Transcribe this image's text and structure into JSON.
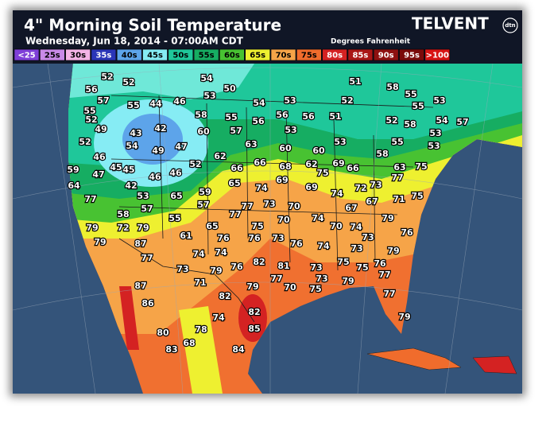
{
  "header": {
    "title": "4\" Morning Soil Temperature",
    "subtitle": "Wednesday, Jun 18, 2014 - 07:00AM CDT",
    "units": "Degrees Fahrenheit",
    "brand": "TELVENT",
    "brand_sub": "dtn"
  },
  "legend": [
    {
      "label": "<25",
      "color": "#7f3fd8",
      "text_color": "#ffffff"
    },
    {
      "label": "25s",
      "color": "#c98ae8",
      "text_color": "#000000"
    },
    {
      "label": "30s",
      "color": "#f4b4e6",
      "text_color": "#000000"
    },
    {
      "label": "35s",
      "color": "#2a36b8",
      "text_color": "#ffffff"
    },
    {
      "label": "40s",
      "color": "#5da4ea",
      "text_color": "#000000"
    },
    {
      "label": "45s",
      "color": "#86ecf4",
      "text_color": "#000000"
    },
    {
      "label": "50s",
      "color": "#1fc79a",
      "text_color": "#000000"
    },
    {
      "label": "55s",
      "color": "#16ad62",
      "text_color": "#000000"
    },
    {
      "label": "60s",
      "color": "#48c232",
      "text_color": "#000000"
    },
    {
      "label": "65s",
      "color": "#eef030",
      "text_color": "#000000"
    },
    {
      "label": "70s",
      "color": "#f6a448",
      "text_color": "#000000"
    },
    {
      "label": "75s",
      "color": "#f06c2c",
      "text_color": "#000000"
    },
    {
      "label": "80s",
      "color": "#d42222",
      "text_color": "#ffffff"
    },
    {
      "label": "85s",
      "color": "#aa1616",
      "text_color": "#ffffff"
    },
    {
      "label": "90s",
      "color": "#8e1010",
      "text_color": "#ffffff"
    },
    {
      "label": "95s",
      "color": "#7a0a0a",
      "text_color": "#ffffff"
    },
    {
      "label": ">100",
      "color": "#d81414",
      "text_color": "#ffffff"
    }
  ],
  "stations": [
    52,
    52,
    54,
    50,
    53,
    51,
    58,
    55,
    56,
    57,
    55,
    44,
    46,
    54,
    53,
    52,
    53,
    55,
    55,
    52,
    49,
    58,
    55,
    56,
    56,
    56,
    51,
    52,
    58,
    54,
    57,
    43,
    42,
    60,
    57,
    53,
    53,
    55,
    53,
    52,
    54,
    49,
    47,
    63,
    60,
    60,
    58,
    53,
    46,
    45,
    45,
    52,
    62,
    66,
    66,
    68,
    62,
    75,
    69,
    66,
    63,
    75,
    59,
    47,
    46,
    46,
    69,
    69,
    74,
    72,
    73,
    77,
    64,
    42,
    53,
    65,
    59,
    65,
    74,
    57,
    77,
    75,
    77,
    77,
    73,
    70,
    74,
    70,
    67,
    67,
    71,
    79,
    58,
    57,
    55,
    65,
    75,
    70,
    74,
    73,
    76,
    79,
    72,
    79,
    61,
    76,
    76,
    73,
    76,
    74,
    79,
    87,
    74,
    74,
    79,
    77,
    82,
    81,
    73,
    75,
    73,
    75,
    76,
    73,
    76,
    79,
    77,
    73,
    79,
    77,
    71,
    79,
    70,
    75,
    87,
    86,
    82,
    77,
    82,
    74,
    85,
    79,
    78,
    80,
    68,
    84,
    83
  ]
}
